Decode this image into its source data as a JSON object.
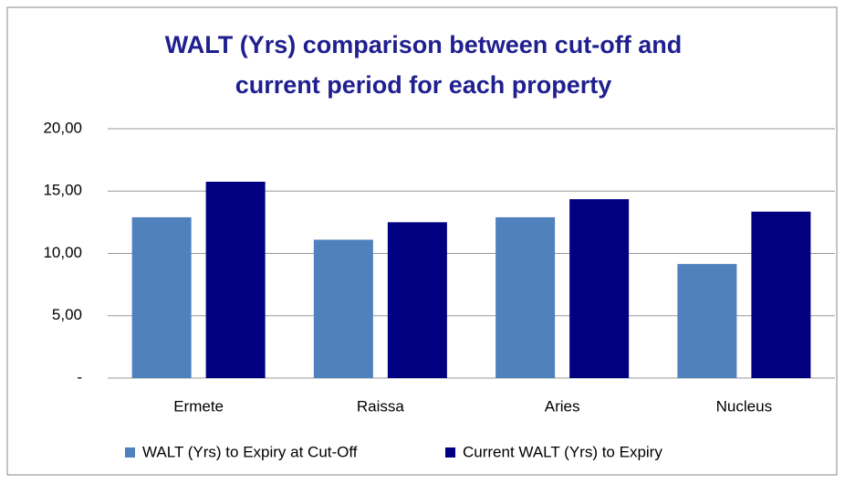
{
  "chart_data": {
    "type": "bar",
    "title": [
      "WALT (Yrs) comparison between cut-off and",
      "current period for each property"
    ],
    "categories": [
      "Ermete",
      "Raissa",
      "Aries",
      "Nucleus"
    ],
    "series": [
      {
        "name": "WALT (Yrs) to Expiry at Cut-Off",
        "color": "#4f81bd",
        "values": [
          12.9,
          11.1,
          12.9,
          9.15
        ]
      },
      {
        "name": "Current WALT (Yrs) to Expiry",
        "color": "#000080",
        "values": [
          15.75,
          12.5,
          14.35,
          13.35
        ]
      }
    ],
    "ylim": [
      0,
      20
    ],
    "yticks": [
      {
        "value": 0,
        "label": "-"
      },
      {
        "value": 5,
        "label": "5,00"
      },
      {
        "value": 10,
        "label": "10,00"
      },
      {
        "value": 15,
        "label": "15,00"
      },
      {
        "value": 20,
        "label": "20,00"
      }
    ],
    "grid": true,
    "legend": "bottom"
  }
}
